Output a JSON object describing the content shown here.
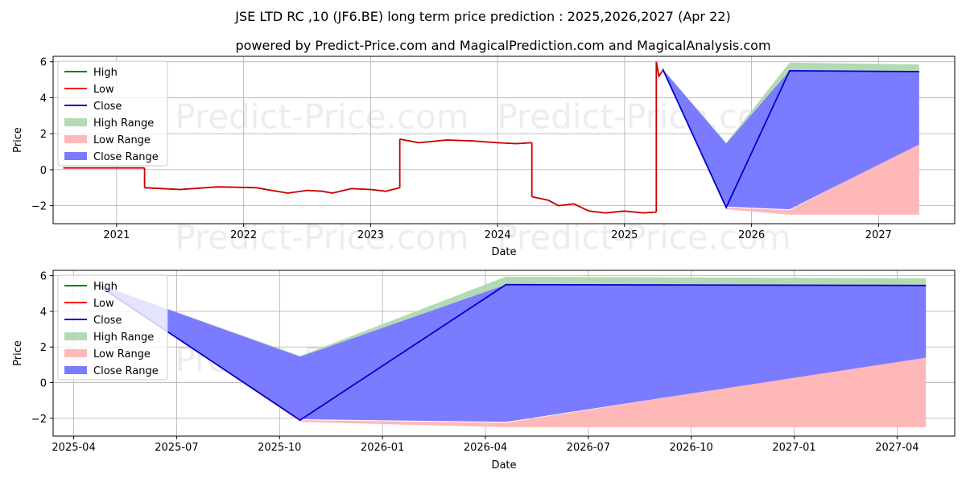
{
  "title": "JSE LTD RC ,10 (JF6.BE) long term price prediction : 2025,2026,2027 (Apr 22)",
  "subtitle": "powered by Predict-Price.com and MagicalPrediction.com and MagicalAnalysis.com",
  "watermark": "Predict-Price.com",
  "colors": {
    "high": "#008000",
    "low": "#ff0000",
    "close": "#0000cc",
    "high_range": "#b3dab3",
    "low_range": "#ffb8b8",
    "close_range": "#7b7bff",
    "grid": "#b0b0b0"
  },
  "legend": [
    "High",
    "Low",
    "Close",
    "High Range",
    "Low Range",
    "Close Range"
  ],
  "chart_data": [
    {
      "type": "line",
      "xlabel": "Date",
      "ylabel": "Price",
      "xlim": [
        2020.5,
        2027.6
      ],
      "ylim": [
        -3,
        6.3
      ],
      "x_ticks": [
        2021,
        2022,
        2023,
        2024,
        2025,
        2026,
        2027
      ],
      "x_tick_labels": [
        "2021",
        "2022",
        "2023",
        "2024",
        "2025",
        "2026",
        "2027"
      ],
      "y_ticks": [
        -2,
        0,
        2,
        4,
        6
      ],
      "y_tick_labels": [
        "−2",
        "0",
        "2",
        "4",
        "6"
      ],
      "grid": true,
      "legend_position": "upper-left",
      "history_segments": [
        [
          [
            2020.58,
            0.1
          ],
          [
            2021.22,
            0.1
          ]
        ],
        [
          [
            2021.22,
            -1.0
          ],
          [
            2021.5,
            -1.1
          ],
          [
            2021.8,
            -0.95
          ],
          [
            2022.1,
            -1.0
          ],
          [
            2022.22,
            -1.15
          ],
          [
            2022.35,
            -1.3
          ],
          [
            2022.5,
            -1.15
          ],
          [
            2022.62,
            -1.2
          ],
          [
            2022.7,
            -1.3
          ],
          [
            2022.85,
            -1.05
          ],
          [
            2023.0,
            -1.1
          ],
          [
            2023.12,
            -1.2
          ],
          [
            2023.23,
            -1.0
          ]
        ],
        [
          [
            2023.23,
            1.7
          ],
          [
            2023.38,
            1.5
          ],
          [
            2023.6,
            1.65
          ],
          [
            2023.8,
            1.6
          ],
          [
            2024.0,
            1.5
          ],
          [
            2024.15,
            1.45
          ],
          [
            2024.27,
            1.5
          ]
        ],
        [
          [
            2024.27,
            -1.5
          ],
          [
            2024.4,
            -1.7
          ],
          [
            2024.48,
            -2.0
          ],
          [
            2024.6,
            -1.9
          ],
          [
            2024.72,
            -2.3
          ],
          [
            2024.85,
            -2.4
          ],
          [
            2025.0,
            -2.3
          ],
          [
            2025.15,
            -2.4
          ],
          [
            2025.25,
            -2.35
          ]
        ],
        [
          [
            2025.25,
            6.0
          ],
          [
            2025.27,
            5.2
          ],
          [
            2025.3,
            5.5
          ]
        ]
      ],
      "forecast": {
        "x": [
          2025.3,
          2025.8,
          2026.3,
          2027.32
        ],
        "close": [
          5.6,
          -2.1,
          5.5,
          5.45
        ],
        "high_range_top": [
          5.6,
          1.5,
          5.95,
          5.85
        ],
        "close_range_top": [
          5.6,
          1.45,
          5.5,
          5.45
        ],
        "close_range_bottom": [
          5.6,
          -2.05,
          -2.2,
          1.4
        ],
        "low_range_top": [
          5.6,
          -2.1,
          -2.25,
          1.45
        ],
        "low_range_bottom": [
          5.6,
          -2.2,
          -2.5,
          -2.5
        ]
      }
    },
    {
      "type": "line",
      "xlabel": "Date",
      "ylabel": "Price",
      "xlim": [
        2025.2,
        2027.39
      ],
      "ylim": [
        -3,
        6.3
      ],
      "x_ticks": [
        2025.25,
        2025.5,
        2025.75,
        2026.0,
        2026.25,
        2026.5,
        2026.75,
        2027.0,
        2027.25
      ],
      "x_tick_labels": [
        "2025-04",
        "2025-07",
        "2025-10",
        "2026-01",
        "2026-04",
        "2026-07",
        "2026-10",
        "2027-01",
        "2027-04"
      ],
      "y_ticks": [
        -2,
        0,
        2,
        4,
        6
      ],
      "y_tick_labels": [
        "−2",
        "0",
        "2",
        "4",
        "6"
      ],
      "grid": true,
      "legend_position": "upper-left",
      "forecast": {
        "x": [
          2025.3,
          2025.8,
          2026.3,
          2027.32
        ],
        "close": [
          5.6,
          -2.1,
          5.5,
          5.45
        ],
        "high_range_top": [
          5.6,
          1.5,
          5.95,
          5.85
        ],
        "close_range_top": [
          5.6,
          1.45,
          5.5,
          5.45
        ],
        "close_range_bottom": [
          5.6,
          -2.05,
          -2.2,
          1.4
        ],
        "low_range_top": [
          5.6,
          -2.1,
          -2.25,
          1.45
        ],
        "low_range_bottom": [
          5.6,
          -2.2,
          -2.5,
          -2.5
        ]
      }
    }
  ]
}
